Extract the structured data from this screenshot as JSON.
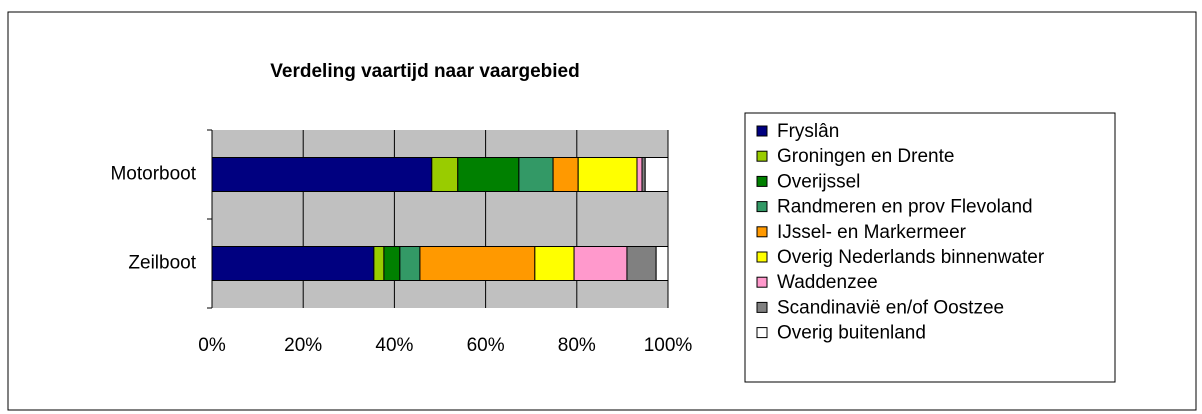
{
  "chart_data": {
    "type": "stacked-barh",
    "title": "Verdeling vaartijd naar vaargebied",
    "categories": [
      "Motorboot",
      "Zeilboot"
    ],
    "series": [
      {
        "name": "Fryslân",
        "color": "#000080",
        "values": [
          48.2,
          35.5
        ]
      },
      {
        "name": "Groningen en Drente",
        "color": "#99cc00",
        "values": [
          5.7,
          2.2
        ]
      },
      {
        "name": "Overijssel",
        "color": "#008000",
        "values": [
          13.4,
          3.5
        ]
      },
      {
        "name": "Randmeren en prov Flevoland",
        "color": "#339966",
        "values": [
          7.5,
          4.4
        ]
      },
      {
        "name": "IJssel- en Markermeer",
        "color": "#ff9900",
        "values": [
          5.5,
          25.2
        ]
      },
      {
        "name": "Overig Nederlands binnenwater",
        "color": "#ffff00",
        "values": [
          12.9,
          8.6
        ]
      },
      {
        "name": "Waddenzee",
        "color": "#ff99cc",
        "values": [
          1.1,
          11.6
        ]
      },
      {
        "name": "Scandinavië en/of Oostzee",
        "color": "#808080",
        "values": [
          0.7,
          6.4
        ]
      },
      {
        "name": "Overig buitenland",
        "color": "#ffffff",
        "values": [
          5.0,
          2.6
        ]
      }
    ],
    "xlim": [
      0,
      100
    ],
    "xticks": [
      {
        "value": 0,
        "label": "0%"
      },
      {
        "value": 20,
        "label": "20%"
      },
      {
        "value": 40,
        "label": "40%"
      },
      {
        "value": 60,
        "label": "60%"
      },
      {
        "value": 80,
        "label": "80%"
      },
      {
        "value": 100,
        "label": "100%"
      }
    ],
    "grid": true,
    "legend": "right"
  }
}
